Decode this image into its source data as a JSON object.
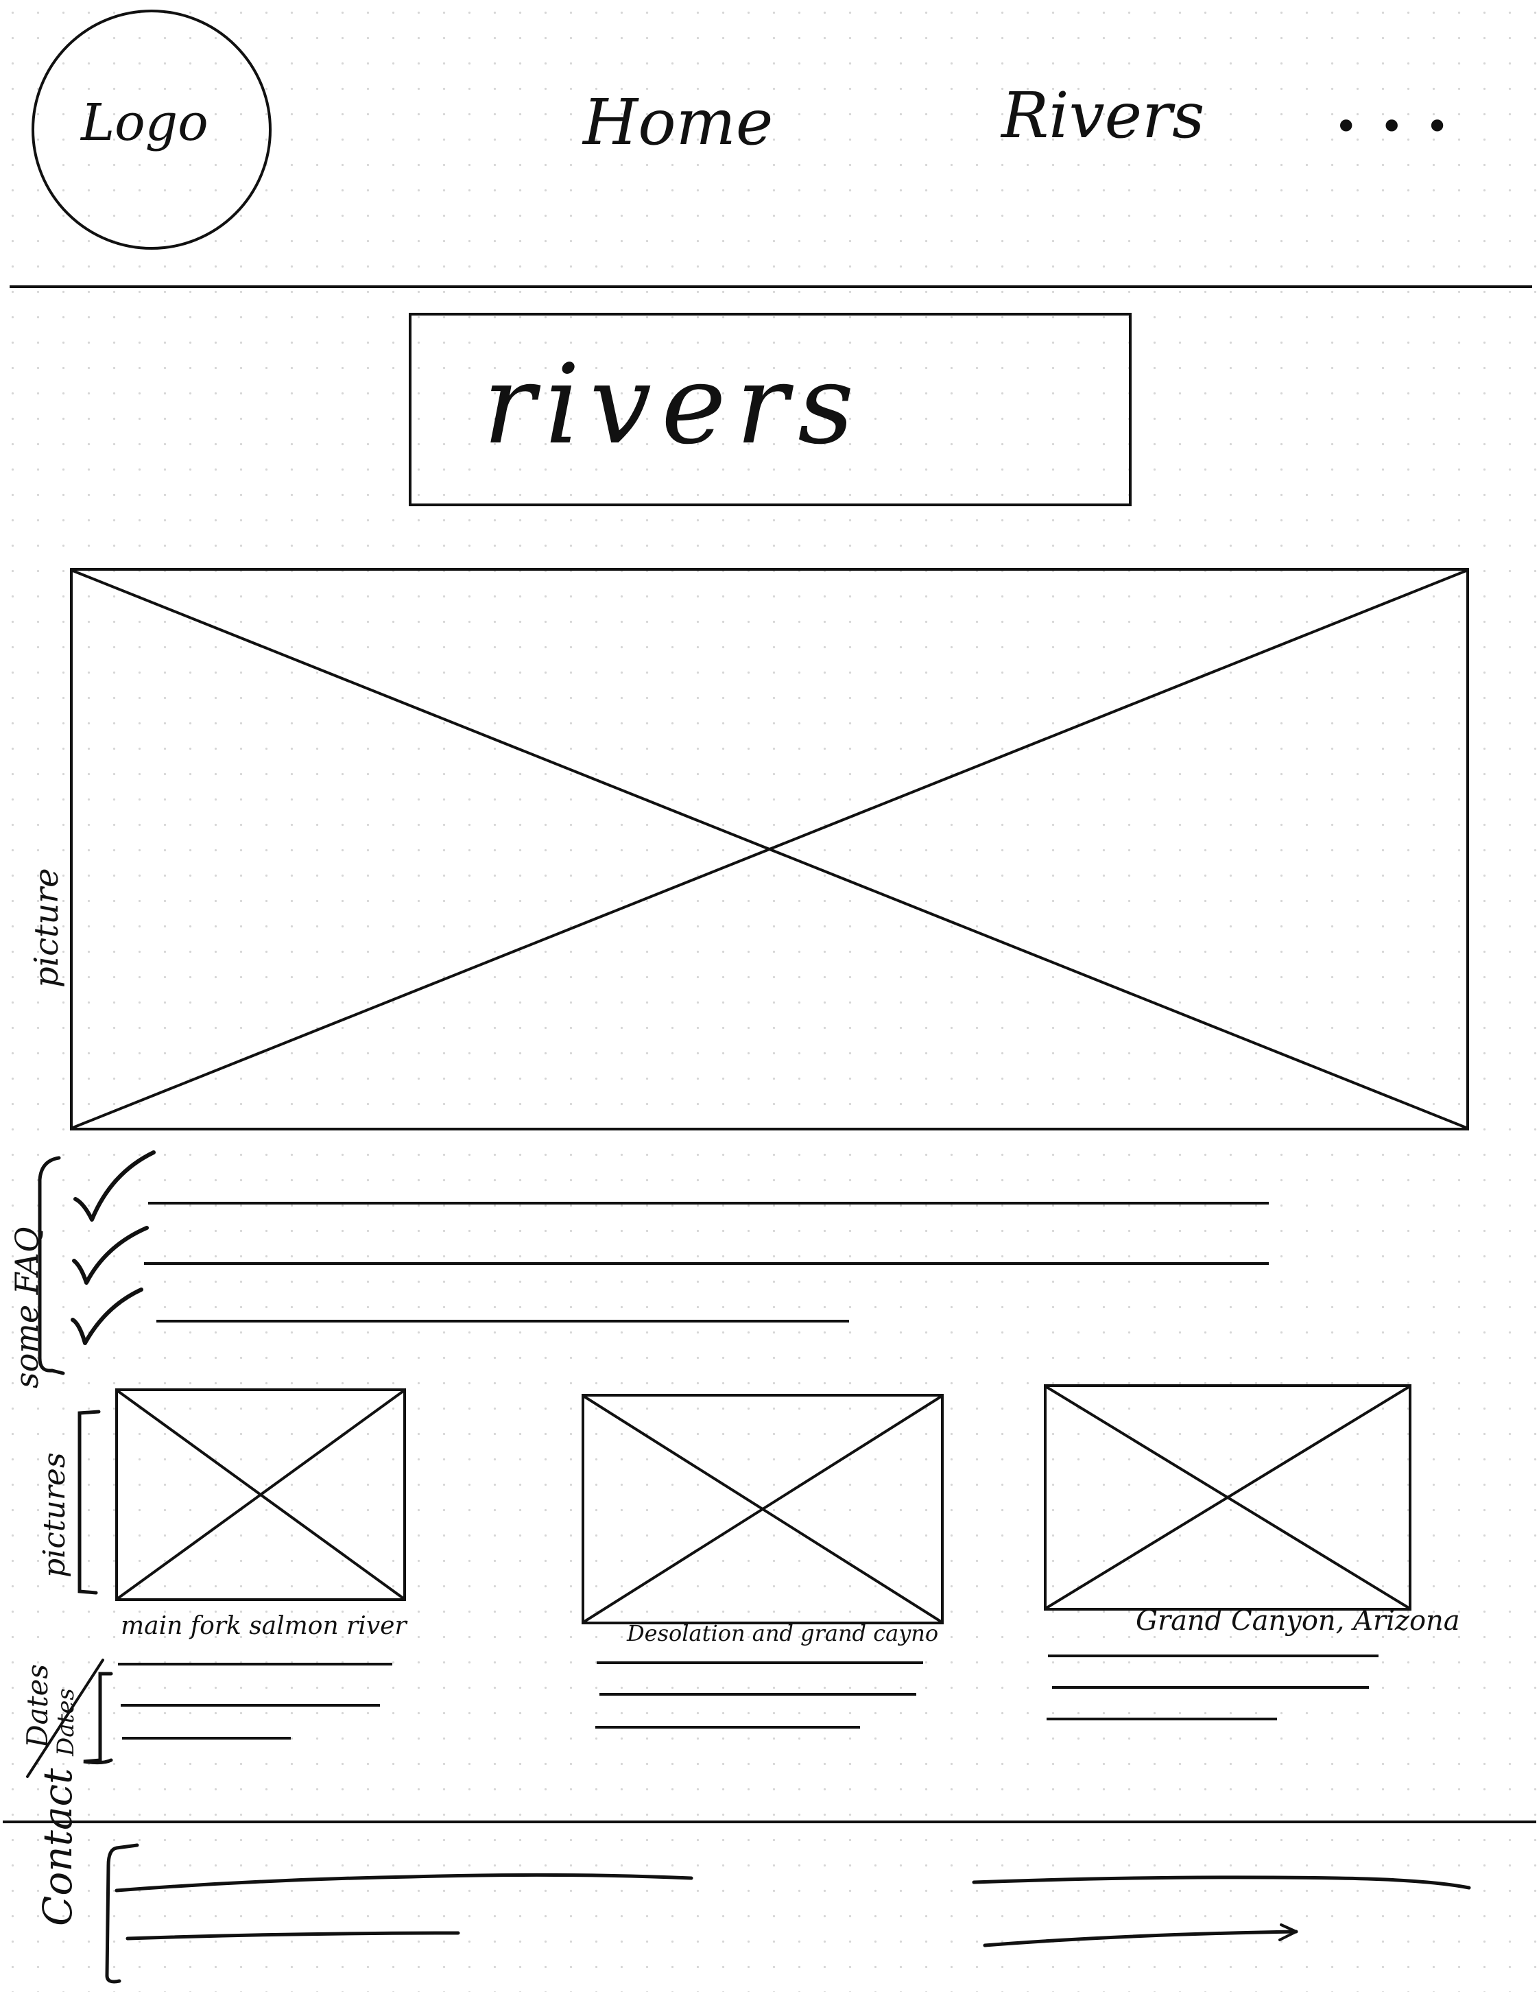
{
  "header": {
    "logo_label": "Logo",
    "nav_items": [
      "Home",
      "Rivers",
      "• • •"
    ]
  },
  "title_box": {
    "text": "rivers"
  },
  "annotations": {
    "picture": "picture",
    "some_faq": "some FAQ",
    "pictures": "pictures",
    "dates": "Dates",
    "dates_crossed": "Dates",
    "contact": "Contact"
  },
  "gallery": [
    {
      "caption": "main fork salmon river"
    },
    {
      "caption": "Desolation and grand cayno"
    },
    {
      "caption": "Grand Canyon, Arizona"
    }
  ]
}
